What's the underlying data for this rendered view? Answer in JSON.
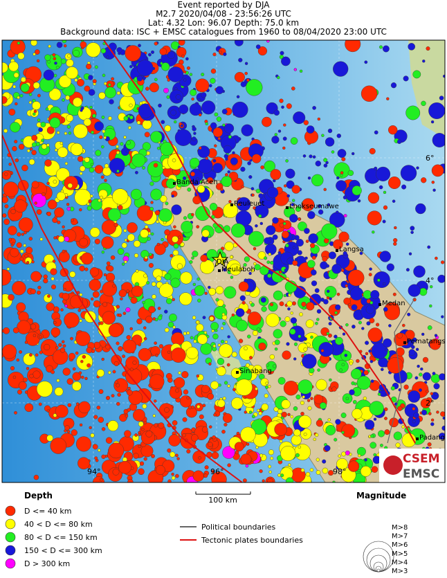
{
  "header": {
    "lines": [
      "Event reported by DJA",
      "M2.7  2020/04/08 - 23:56:26 UTC",
      "Lat:  4.32    Lon:  96.07      Depth:  75.0 km",
      "Background data: ISC + EMSC catalogues from 1960 to 08/04/2020 23:00 UTC"
    ]
  },
  "map": {
    "latitude_labels": [
      "6°",
      "4°",
      "2°"
    ],
    "longitude_labels": [
      "94°",
      "96°",
      "98°"
    ],
    "places": [
      "Banda Aceh",
      "Reuleuet",
      "Lhokseumawe",
      "Langsa",
      "Meulaboh",
      "Medan",
      "Pematangs",
      "Sinabang",
      "Padang"
    ],
    "event_label": "DJA"
  },
  "scale": "100 km",
  "logo": {
    "top": "CSEM",
    "bottom": "EMSC"
  },
  "legend": {
    "depth_title": "Depth",
    "depth": [
      {
        "label": "D <= 40 km",
        "color": "#ff2a00"
      },
      {
        "label": "40 < D <= 80 km",
        "color": "#ffff00"
      },
      {
        "label": "80 < D <= 150 km",
        "color": "#22ee22"
      },
      {
        "label": "150 < D <= 300 km",
        "color": "#1818d8"
      },
      {
        "label": "D > 300 km",
        "color": "#ff00ff"
      }
    ],
    "lines": [
      {
        "label": "Political boundaries",
        "color": "#666666"
      },
      {
        "label": "Tectonic plates boundaries",
        "color": "#dd1111"
      }
    ],
    "magnitude_title": "Magnitude",
    "magnitude": [
      "M>8",
      "M>7",
      "M>6",
      "M>5",
      "M>4",
      "M>3"
    ]
  }
}
